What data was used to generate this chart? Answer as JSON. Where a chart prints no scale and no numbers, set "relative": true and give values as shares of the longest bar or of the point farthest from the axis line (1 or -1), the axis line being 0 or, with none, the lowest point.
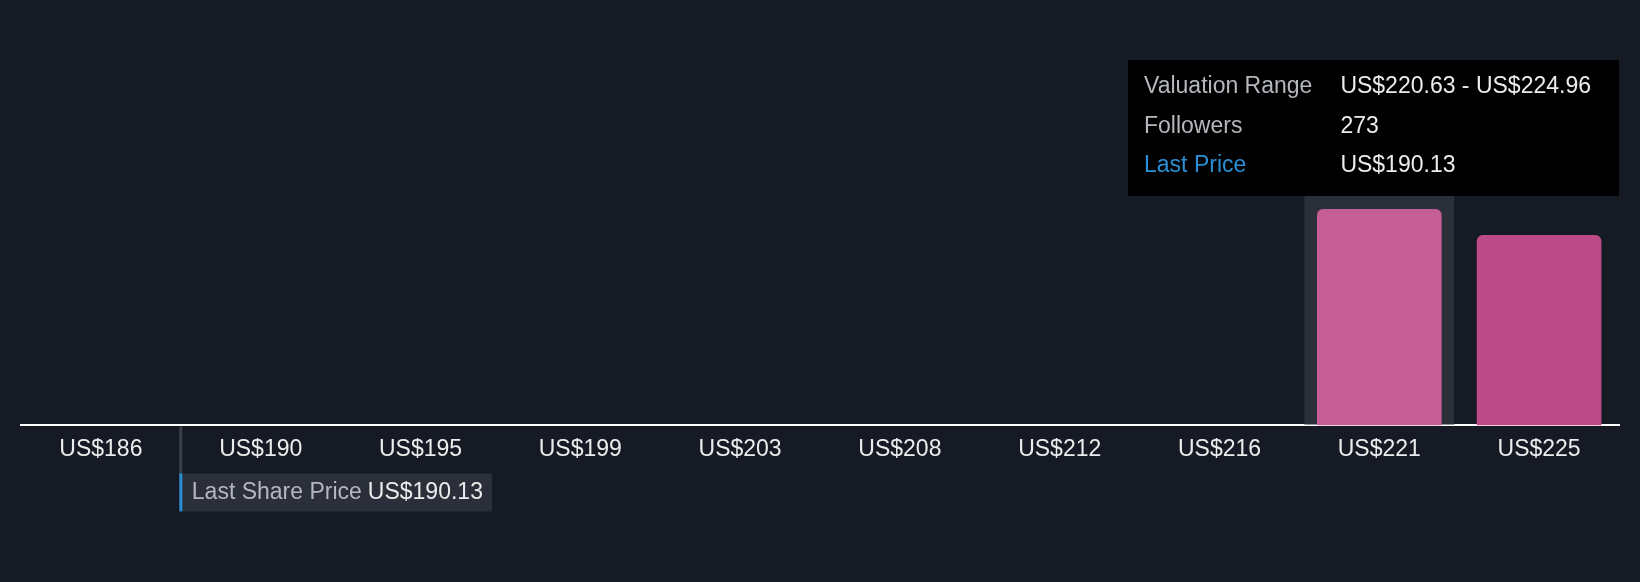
{
  "chart_data": {
    "type": "bar",
    "categories": [
      "US$186",
      "US$190",
      "US$195",
      "US$199",
      "US$203",
      "US$208",
      "US$212",
      "US$216",
      "US$221",
      "US$225"
    ],
    "values": [
      0,
      0,
      0,
      0,
      0,
      0,
      0,
      0,
      1,
      0.88
    ],
    "colors": [
      "#bb4a87",
      "#bb4a87",
      "#bb4a87",
      "#bb4a87",
      "#bb4a87",
      "#bb4a87",
      "#bb4a87",
      "#bb4a87",
      "#c45e95",
      "#bb4a87"
    ],
    "relative": true,
    "bands": [
      {
        "axis": "x",
        "from": "US$221",
        "to": "US$221",
        "color": "#2a2f3a"
      }
    ],
    "annotations": [
      "Last Share Price",
      "US$190.13",
      "Valuation Range",
      "US$220.63 - US$224.96",
      "Followers",
      "273",
      "Last Price",
      "US$190.13"
    ]
  }
}
